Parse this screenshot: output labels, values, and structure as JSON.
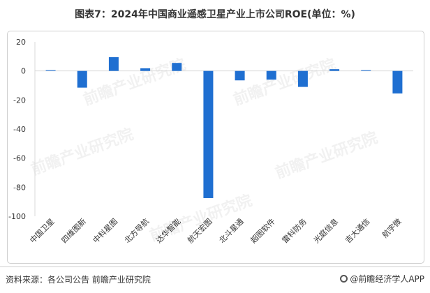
{
  "title": "图表7：2024年中国商业遥感卫星产业上市公司ROE(单位：%)",
  "source": "资料来源：各公司公告 前瞻产业研究院",
  "brand": "@前瞻经济学人APP",
  "watermark": "前瞻产业研究院",
  "colors": {
    "bar": "#1f6fd1",
    "axis": "#d9d9d9",
    "text": "#333333"
  },
  "chart_data": {
    "type": "bar",
    "categories": [
      "中国卫星",
      "四维图新",
      "中科星图",
      "北方导航",
      "达华智能",
      "航天宏图",
      "北斗星通",
      "超图软件",
      "雷科防务",
      "光庭信息",
      "吉大通信",
      "航宇微"
    ],
    "values": [
      0.5,
      -11.5,
      9.5,
      1.8,
      5.5,
      -87.5,
      -6.5,
      -6.0,
      -11.0,
      1.2,
      0.5,
      -15.5
    ],
    "ylim": [
      -100,
      20
    ],
    "yticks": [
      20,
      0,
      -20,
      -40,
      -60,
      -80,
      -100
    ],
    "grid": false,
    "xlabel": "",
    "ylabel": ""
  }
}
